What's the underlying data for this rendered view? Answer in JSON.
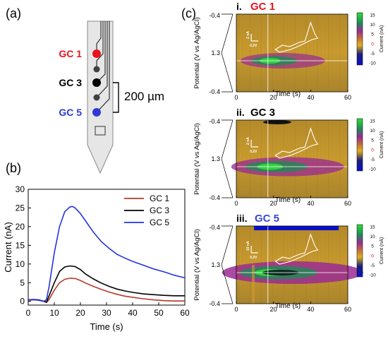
{
  "panels": {
    "a": "(a)",
    "b": "(b)",
    "c": "(c)"
  },
  "probe": {
    "electrodes": [
      {
        "label": "GC 1",
        "color": "#e8141b"
      },
      {
        "label": "",
        "color": "#404040"
      },
      {
        "label": "GC 3",
        "color": "#000000"
      },
      {
        "label": "",
        "color": "#404040"
      },
      {
        "label": "GC 5",
        "color": "#2e3ad6"
      }
    ],
    "scale_label": "200 µm"
  },
  "chart_data": [
    {
      "type": "line",
      "xlabel": "Time (s)",
      "ylabel": "Current (nA)",
      "xlim": [
        0,
        60
      ],
      "ylim": [
        -1,
        30
      ],
      "x_ticks": [
        0,
        10,
        20,
        30,
        40,
        50,
        60
      ],
      "y_ticks": [
        0,
        5,
        10,
        15,
        20,
        25,
        30
      ],
      "legend_position": "top-right",
      "series": [
        {
          "name": "GC 1",
          "color": "#b5392c",
          "points": [
            [
              0,
              0.3
            ],
            [
              2,
              0.4
            ],
            [
              4,
              0.3
            ],
            [
              6,
              0
            ],
            [
              7,
              -0.3
            ],
            [
              8,
              0.5
            ],
            [
              10,
              3
            ],
            [
              12,
              5
            ],
            [
              14,
              5.9
            ],
            [
              16,
              6.2
            ],
            [
              18,
              6.1
            ],
            [
              20,
              5.6
            ],
            [
              22,
              4.9
            ],
            [
              25,
              4
            ],
            [
              28,
              3.2
            ],
            [
              31,
              2.5
            ],
            [
              34,
              1.9
            ],
            [
              37,
              1.4
            ],
            [
              40,
              1.1
            ],
            [
              44,
              0.7
            ],
            [
              48,
              0.4
            ],
            [
              52,
              0.2
            ],
            [
              56,
              0.1
            ],
            [
              60,
              0.1
            ]
          ]
        },
        {
          "name": "GC 3",
          "color": "#000000",
          "points": [
            [
              0,
              0.4
            ],
            [
              2,
              0.5
            ],
            [
              4,
              0.4
            ],
            [
              6,
              0
            ],
            [
              7,
              -0.2
            ],
            [
              8,
              1.5
            ],
            [
              10,
              5
            ],
            [
              12,
              8
            ],
            [
              14,
              9.2
            ],
            [
              16,
              9.5
            ],
            [
              18,
              9.3
            ],
            [
              20,
              8.5
            ],
            [
              22,
              7.3
            ],
            [
              25,
              6
            ],
            [
              28,
              4.9
            ],
            [
              31,
              4
            ],
            [
              34,
              3.3
            ],
            [
              37,
              2.8
            ],
            [
              40,
              2.4
            ],
            [
              44,
              2
            ],
            [
              48,
              1.8
            ],
            [
              52,
              1.6
            ],
            [
              56,
              1.5
            ],
            [
              60,
              1.5
            ]
          ]
        },
        {
          "name": "GC 5",
          "color": "#2432e0",
          "points": [
            [
              0,
              0.3
            ],
            [
              2,
              0.5
            ],
            [
              4,
              0.3
            ],
            [
              6,
              0
            ],
            [
              7,
              0.5
            ],
            [
              8,
              4
            ],
            [
              10,
              13
            ],
            [
              12,
              20
            ],
            [
              14,
              24
            ],
            [
              16,
              25.3
            ],
            [
              17,
              25.4
            ],
            [
              18,
              25
            ],
            [
              20,
              23.5
            ],
            [
              22,
              21.5
            ],
            [
              25,
              18.5
            ],
            [
              28,
              16
            ],
            [
              31,
              14.2
            ],
            [
              34,
              12.6
            ],
            [
              37,
              11.6
            ],
            [
              40,
              10.7
            ],
            [
              44,
              9.7
            ],
            [
              48,
              8.7
            ],
            [
              52,
              7.9
            ],
            [
              56,
              7
            ],
            [
              60,
              6.3
            ]
          ]
        }
      ]
    },
    {
      "type": "heatmap",
      "title_prefix": "i.",
      "title": "GC 1",
      "title_color": "#e8141b",
      "xlabel": "Time (s)",
      "ylabel": "Potential (V vs Ag/AgCl)",
      "x_ticks": [
        0,
        20,
        40,
        60
      ],
      "y_ticks": [
        "-0.4",
        "1.3",
        "-0.4"
      ],
      "xlim": [
        0,
        60
      ],
      "colorbar_label": "Current (nA)",
      "colorbar_ticks": [
        15,
        10,
        5,
        0,
        -5,
        -10
      ],
      "inset_current_scale": "2 nA",
      "inset_voltage_scale": "0.2V",
      "hot_spot": {
        "time": 17,
        "potential_frac": 0.6,
        "intensity": 0.5
      }
    },
    {
      "type": "heatmap",
      "title_prefix": "ii.",
      "title": "GC 3",
      "title_color": "#000000",
      "xlabel": "Time (s)",
      "ylabel": "Potential (V vs Ag/AgCl)",
      "x_ticks": [
        0,
        20,
        40,
        60
      ],
      "y_ticks": [
        "-0.4",
        "1.3",
        "-0.4"
      ],
      "xlim": [
        0,
        60
      ],
      "colorbar_label": "Current (nA)",
      "colorbar_ticks": [
        15,
        10,
        5,
        0,
        -5,
        -10
      ],
      "inset_current_scale": "2 nA",
      "inset_voltage_scale": "0.2V",
      "hot_spot": {
        "time": 17,
        "potential_frac": 0.6,
        "intensity": 0.75
      }
    },
    {
      "type": "heatmap",
      "title_prefix": "iii.",
      "title": "GC 5",
      "title_color": "#3a45d8",
      "xlabel": "Time (s)",
      "ylabel": "Potential (V vs Ag/AgCl)",
      "x_ticks": [
        0,
        20,
        40,
        60
      ],
      "y_ticks": [
        "-0.4",
        "1.3",
        "-0.4"
      ],
      "xlim": [
        0,
        60
      ],
      "colorbar_label": "Current (nA)",
      "colorbar_ticks": [
        15,
        10,
        5,
        0,
        -5,
        -10
      ],
      "inset_current_scale": "10 nA",
      "inset_voltage_scale": "0.2V",
      "hot_spot": {
        "time": 17,
        "potential_frac": 0.6,
        "intensity": 1.0
      }
    }
  ]
}
